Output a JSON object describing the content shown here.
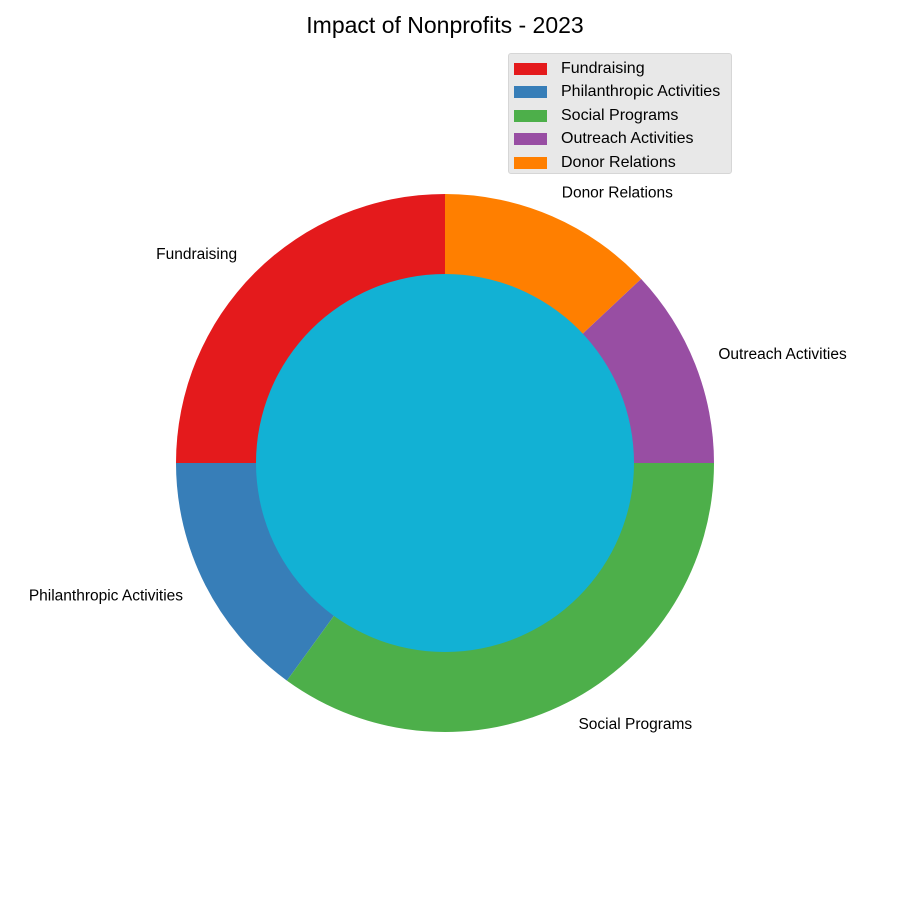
{
  "chart_data": {
    "type": "pie",
    "title": "Impact of Nonprofits - 2023",
    "categories": [
      "Fundraising",
      "Philanthropic Activities",
      "Social Programs",
      "Outreach Activities",
      "Donor Relations"
    ],
    "values": [
      25,
      15,
      35,
      12,
      13
    ],
    "colors": [
      "#e41a1c",
      "#377eb8",
      "#4daf4a",
      "#984ea3",
      "#ff7f00"
    ],
    "center_color": "#12b1d4",
    "start_angle_deg": 90,
    "direction": "counterclockwise",
    "donut": true,
    "legend_placement": "top-right",
    "slice_labels": [
      "Fundraising",
      "Philanthropic Activities",
      "Social Programs",
      "Outreach Activities",
      "Donor Relations"
    ]
  }
}
